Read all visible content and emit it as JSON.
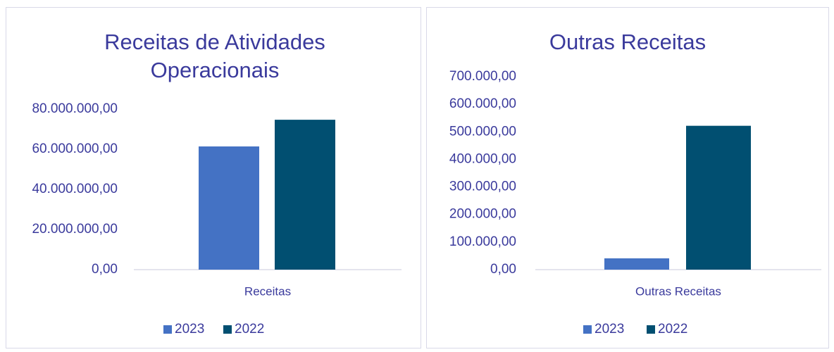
{
  "chart_data": [
    {
      "type": "bar",
      "title": "Receitas de Atividades Operacionais",
      "categories": [
        "Receitas"
      ],
      "series": [
        {
          "name": "2023",
          "color": "#4472c4",
          "values": [
            61400000
          ]
        },
        {
          "name": "2022",
          "color": "#014f71",
          "values": [
            74700000
          ]
        }
      ],
      "ylim": [
        0,
        80000000
      ],
      "yticks": [
        {
          "value": 0,
          "label": "0,00"
        },
        {
          "value": 20000000,
          "label": "20.000.000,00"
        },
        {
          "value": 40000000,
          "label": "40.000.000,00"
        },
        {
          "value": 60000000,
          "label": "60.000.000,00"
        },
        {
          "value": 80000000,
          "label": "80.000.000,00"
        }
      ],
      "legend": "bottom"
    },
    {
      "type": "bar",
      "title": "Outras Receitas",
      "categories": [
        "Outras Receitas"
      ],
      "series": [
        {
          "name": "2023",
          "color": "#4472c4",
          "values": [
            41000
          ]
        },
        {
          "name": "2022",
          "color": "#014f71",
          "values": [
            522000
          ]
        }
      ],
      "ylim": [
        0,
        700000
      ],
      "yticks": [
        {
          "value": 0,
          "label": "0,00"
        },
        {
          "value": 100000,
          "label": "100.000,00"
        },
        {
          "value": 200000,
          "label": "200.000,00"
        },
        {
          "value": 300000,
          "label": "300.000,00"
        },
        {
          "value": 400000,
          "label": "400.000,00"
        },
        {
          "value": 500000,
          "label": "500.000,00"
        },
        {
          "value": 600000,
          "label": "600.000,00"
        },
        {
          "value": 700000,
          "label": "700.000,00"
        }
      ],
      "legend": "bottom"
    }
  ]
}
